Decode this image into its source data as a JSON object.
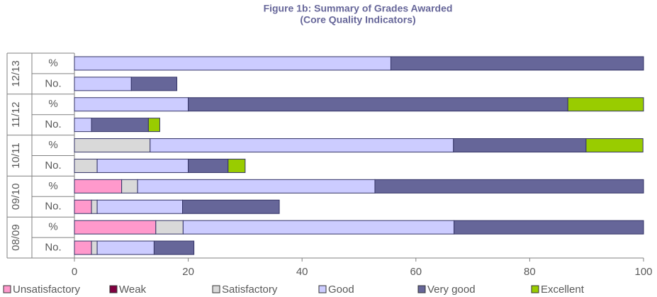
{
  "chart_data": {
    "type": "stacked_barh",
    "title": "Figure 1b: Summary of Grades Awarded",
    "subtitle": "(Core Quality Indicators)",
    "groups": [
      "12/13",
      "11/12",
      "10/11",
      "09/10",
      "08/09"
    ],
    "categories": [
      "%",
      "No.",
      "%",
      "No.",
      "%",
      "No.",
      "%",
      "No.",
      "%",
      "No."
    ],
    "series": [
      {
        "name": "Unsatisfactory",
        "color": "#ff99cc",
        "values": [
          0,
          0,
          0,
          0,
          0,
          0,
          8.3,
          3,
          14.3,
          3
        ]
      },
      {
        "name": "Weak",
        "color": "#800040",
        "values": [
          0,
          0,
          0,
          0,
          0,
          0,
          0,
          0,
          0,
          0
        ]
      },
      {
        "name": "Satisfactory",
        "color": "#d9d9d9",
        "values": [
          0,
          0,
          0,
          0,
          13.3,
          4,
          2.8,
          1,
          4.8,
          1
        ]
      },
      {
        "name": "Good",
        "color": "#ccccff",
        "values": [
          55.6,
          10,
          20,
          3,
          53.3,
          16,
          41.7,
          15,
          47.6,
          10
        ]
      },
      {
        "name": "Very good",
        "color": "#666699",
        "values": [
          44.4,
          8,
          66.7,
          10,
          23.3,
          7,
          47.2,
          17,
          33.3,
          7
        ]
      },
      {
        "name": "Excellent",
        "color": "#99cc00",
        "values": [
          0,
          0,
          13.3,
          2,
          10,
          3,
          0,
          0,
          0,
          0
        ]
      }
    ],
    "xlim": [
      0,
      100
    ],
    "xticks": [
      0,
      20,
      40,
      60,
      80,
      100
    ],
    "grid": false
  }
}
